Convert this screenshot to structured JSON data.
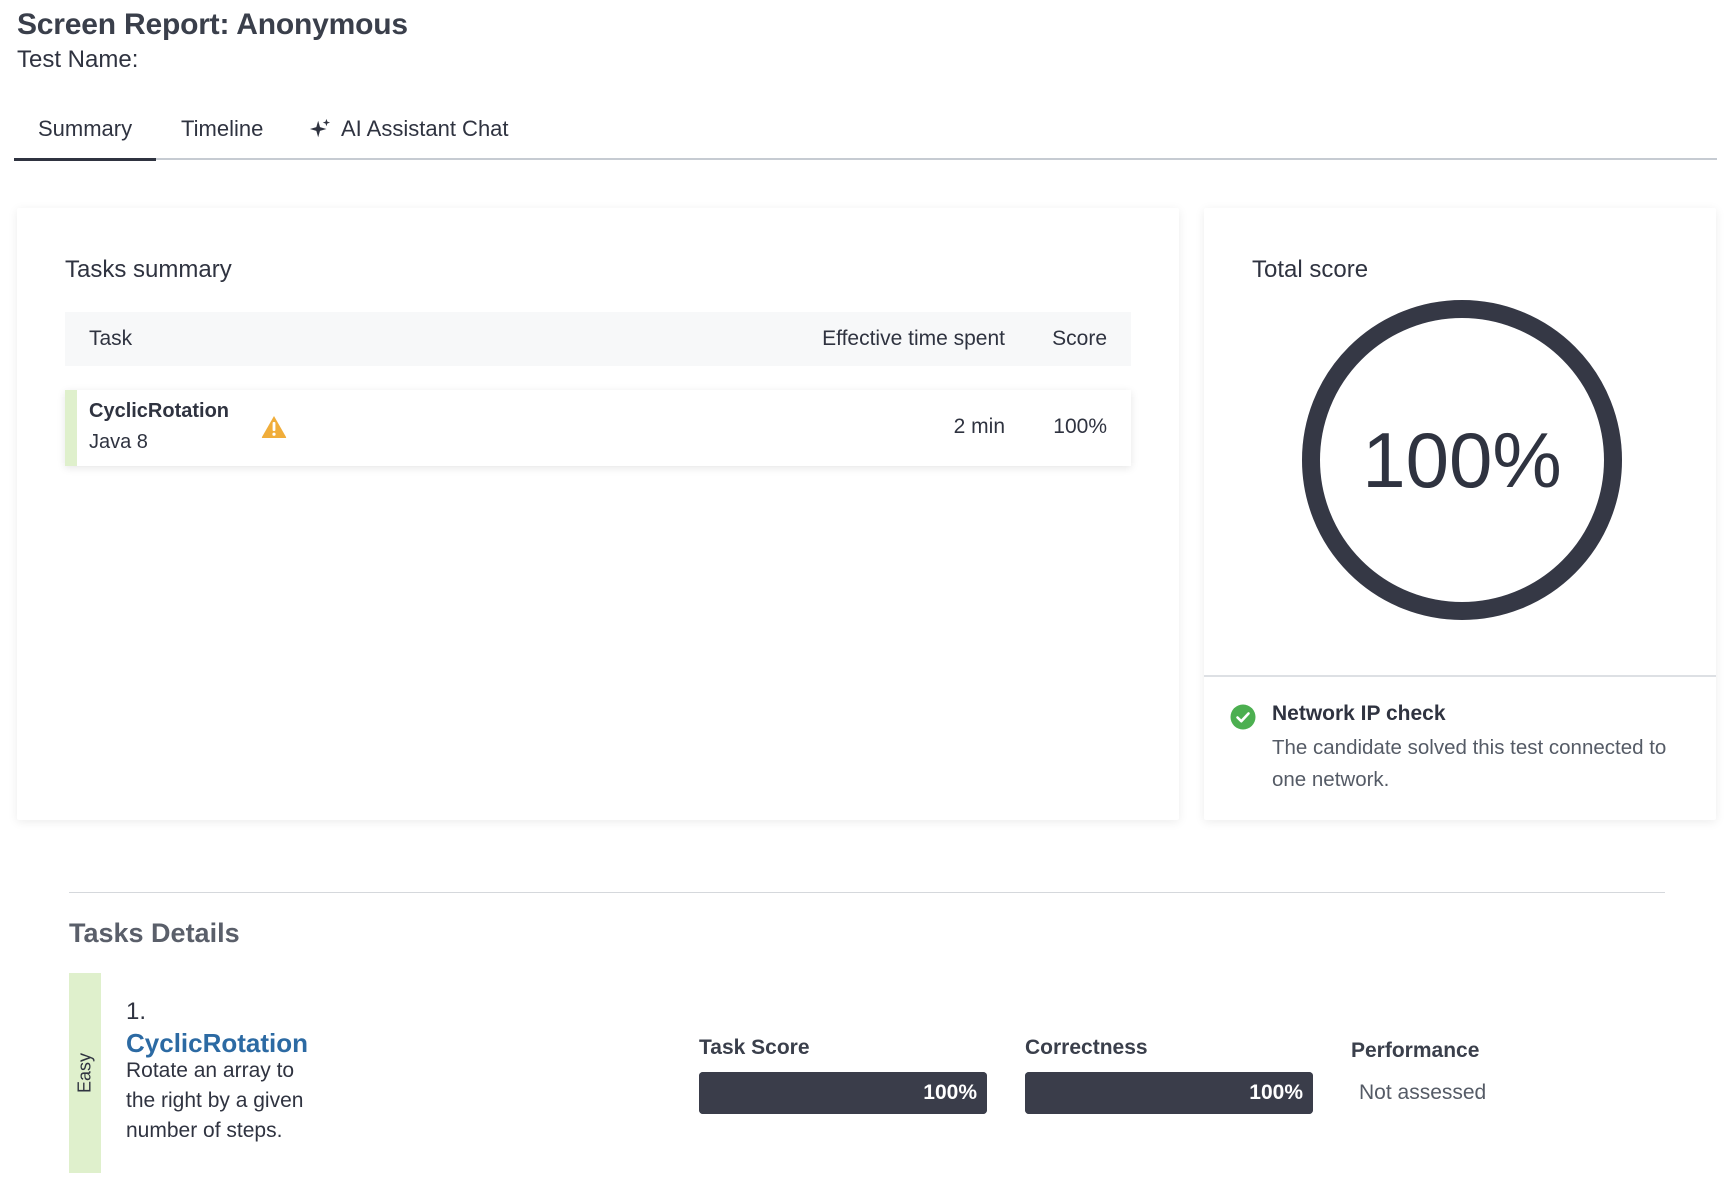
{
  "header": {
    "title": "Screen Report: Anonymous",
    "test_name": "Test Name:"
  },
  "tabs": [
    {
      "label": "Summary",
      "active": true
    },
    {
      "label": "Timeline",
      "active": false
    },
    {
      "label": "AI Assistant Chat",
      "active": false,
      "icon": "sparkle-icon"
    }
  ],
  "tasks_summary": {
    "heading": "Tasks summary",
    "columns": {
      "task": "Task",
      "time": "Effective time spent",
      "score": "Score"
    },
    "rows": [
      {
        "name": "CyclicRotation",
        "language": "Java 8",
        "icon": "warning-icon",
        "time": "2 min",
        "score": "100%"
      }
    ]
  },
  "total_score": {
    "heading": "Total score",
    "value_text": "100%",
    "value": 100,
    "ring_color": "#353845"
  },
  "network_check": {
    "icon": "check-circle-icon",
    "title": "Network IP check",
    "description": "The candidate solved this test connected to one network.",
    "status_color": "#4caf50"
  },
  "tasks_details": {
    "heading": "Tasks Details",
    "tasks": [
      {
        "difficulty": "Easy",
        "number": "1.",
        "name": "CyclicRotation",
        "description": "Rotate an array to the right by a given number of steps.",
        "metrics": {
          "task_score": {
            "label": "Task Score",
            "value_text": "100%",
            "value": 100
          },
          "correctness": {
            "label": "Correctness",
            "value_text": "100%",
            "value": 100
          },
          "performance": {
            "label": "Performance",
            "value_text": "Not assessed"
          }
        }
      }
    ]
  },
  "colors": {
    "accent_dark": "#3a3d4a",
    "easy_green": "#dff0cc",
    "warning": "#f0ad3a",
    "link_blue": "#2c6aa3"
  }
}
